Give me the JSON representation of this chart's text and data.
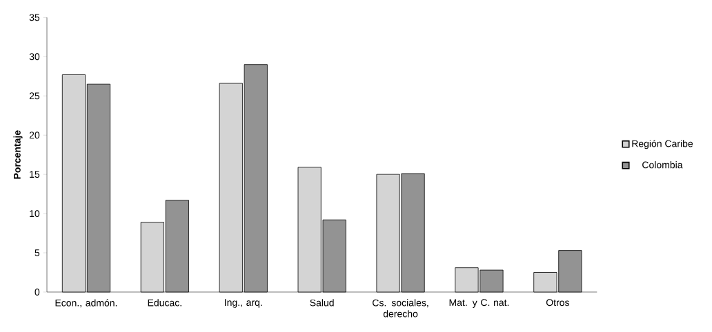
{
  "chart_data": {
    "type": "bar",
    "ylabel": "Porcentaje",
    "categories": [
      "Econ., admón.",
      "Educac.",
      "Ing., arq.",
      "Salud",
      "Cs. sociales, derecho",
      "Mat. y C. nat.",
      "Otros"
    ],
    "series": [
      {
        "name": "Región Caribe",
        "color": "#d4d4d4",
        "values": [
          27.7,
          8.9,
          26.6,
          15.9,
          15.0,
          3.1,
          2.5
        ]
      },
      {
        "name": "Colombia",
        "color": "#939393",
        "values": [
          26.5,
          11.7,
          29.0,
          9.2,
          15.1,
          2.8,
          5.3
        ]
      }
    ],
    "ylim": [
      0,
      35
    ],
    "yticks": [
      0,
      5,
      10,
      15,
      20,
      25,
      30,
      35
    ],
    "legend": "right"
  }
}
